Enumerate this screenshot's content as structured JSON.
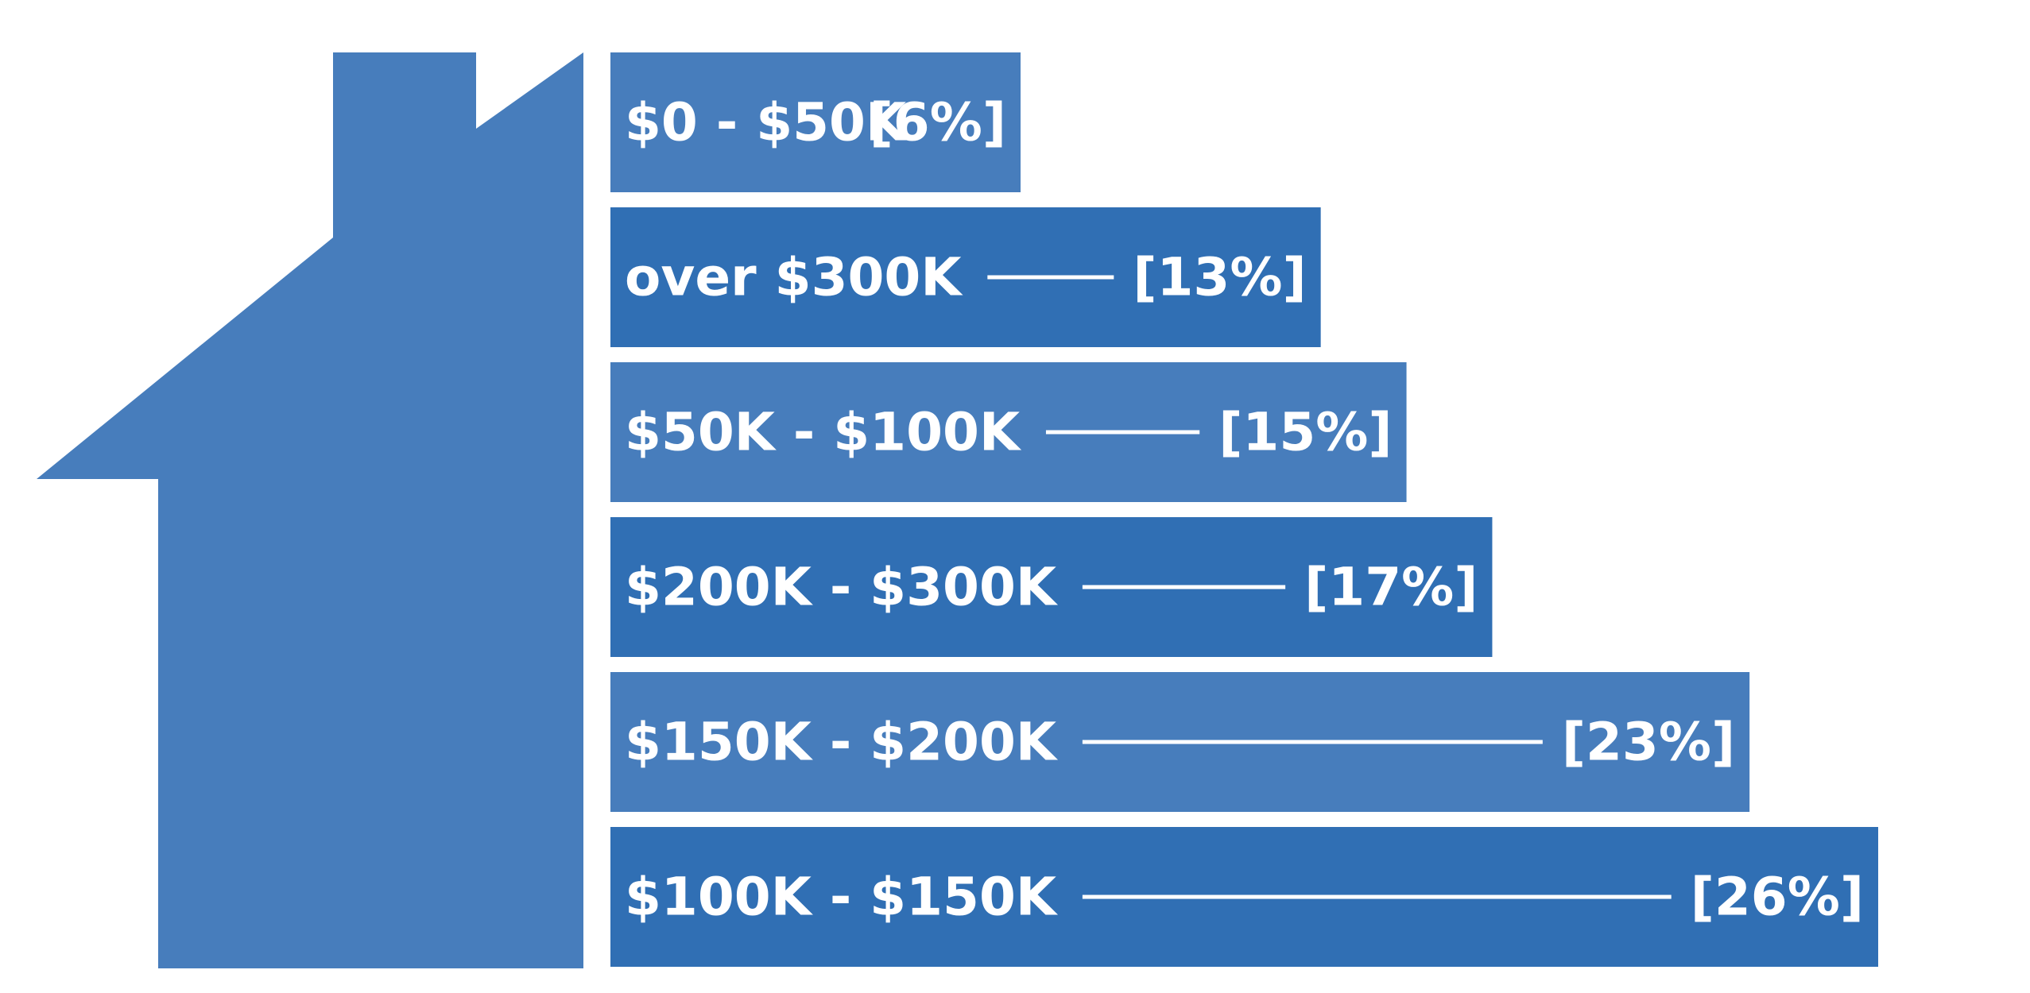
{
  "chart_data": {
    "type": "bar",
    "orientation": "horizontal",
    "categories": [
      "$0 - $50K",
      "over $300K",
      "$50K - $100K",
      "$200K - $300K",
      "$150K - $200K",
      "$100K - $150K"
    ],
    "value_labels": [
      "[6%]",
      "[13%]",
      "[15%]",
      "[17%]",
      "[23%]",
      "[26%]"
    ],
    "values": [
      6,
      13,
      15,
      17,
      23,
      26
    ],
    "xlim": [
      0,
      26
    ],
    "grid": false,
    "colors": {
      "house": "#477dbc",
      "bar_light": "#477dbc",
      "bar_dark": "#306fb4",
      "text": "#ffffff"
    }
  }
}
